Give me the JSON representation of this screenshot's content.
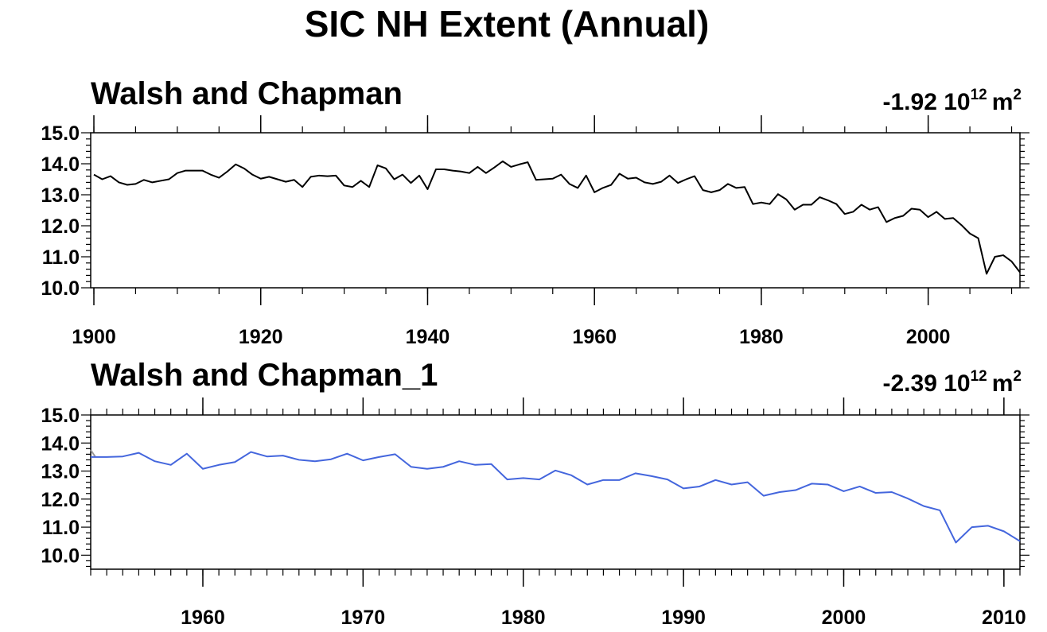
{
  "page_title": "SIC NH Extent (Annual)",
  "chart_data": [
    {
      "type": "line",
      "title": "Walsh and Chapman",
      "annotation": {
        "value": "-1.92 10",
        "exponent": "12",
        "unit": "m",
        "unit_exponent": "2"
      },
      "xlim": [
        1900,
        2011
      ],
      "ylim": [
        10.0,
        15.0
      ],
      "xticks": [
        1900,
        1920,
        1940,
        1960,
        1980,
        2000
      ],
      "xtick_labels": [
        "1900",
        "1920",
        "1940",
        "1960",
        "1980",
        "2000"
      ],
      "yticks": [
        10.0,
        11.0,
        12.0,
        13.0,
        14.0,
        15.0
      ],
      "ytick_labels": [
        "10.0",
        "11.0",
        "12.0",
        "13.0",
        "14.0",
        "15.0"
      ],
      "color": "#000000",
      "series": [
        {
          "x_start": 1900,
          "values": [
            13.65,
            13.5,
            13.6,
            13.4,
            13.32,
            13.35,
            13.48,
            13.4,
            13.45,
            13.5,
            13.7,
            13.78,
            13.78,
            13.78,
            13.65,
            13.55,
            13.75,
            13.98,
            13.85,
            13.65,
            13.52,
            13.58,
            13.5,
            13.42,
            13.48,
            13.25,
            13.58,
            13.62,
            13.6,
            13.62,
            13.3,
            13.25,
            13.45,
            13.25,
            13.95,
            13.85,
            13.5,
            13.65,
            13.38,
            13.62,
            13.18,
            13.82,
            13.82,
            13.78,
            13.75,
            13.7,
            13.9,
            13.7,
            13.88,
            14.08,
            13.9,
            13.98,
            14.05,
            13.48,
            13.5,
            13.52,
            13.65,
            13.35,
            13.22,
            13.62,
            13.08,
            13.22,
            13.32,
            13.68,
            13.52,
            13.55,
            13.4,
            13.35,
            13.42,
            13.62,
            13.38,
            13.5,
            13.6,
            13.15,
            13.08,
            13.15,
            13.35,
            13.22,
            13.25,
            12.7,
            12.75,
            12.7,
            13.02,
            12.85,
            12.52,
            12.68,
            12.68,
            12.92,
            12.82,
            12.7,
            12.38,
            12.45,
            12.68,
            12.52,
            12.6,
            12.12,
            12.25,
            12.32,
            12.55,
            12.52,
            12.28,
            12.45,
            12.22,
            12.25,
            12.02,
            11.75,
            11.6,
            10.45,
            11.0,
            11.05,
            10.85,
            10.5
          ]
        }
      ]
    },
    {
      "type": "line",
      "title": "Walsh and Chapman_1",
      "annotation": {
        "value": "-2.39 10",
        "exponent": "12",
        "unit": "m",
        "unit_exponent": "2"
      },
      "xlim": [
        1953,
        2011
      ],
      "ylim": [
        9.5,
        15.0
      ],
      "xticks": [
        1960,
        1970,
        1980,
        1990,
        2000,
        2010
      ],
      "xtick_labels": [
        "1960",
        "1970",
        "1980",
        "1990",
        "2000",
        "2010"
      ],
      "yticks": [
        10.0,
        11.0,
        12.0,
        13.0,
        14.0,
        15.0
      ],
      "ytick_labels": [
        "10.0",
        "11.0",
        "12.0",
        "13.0",
        "14.0",
        "15.0"
      ],
      "color": "#4466dd",
      "lead_in": {
        "from": [
          1953,
          13.75
        ],
        "to": [
          1953.3,
          13.5
        ],
        "color": "#999999"
      },
      "series": [
        {
          "x_start": 1953,
          "values": [
            13.5,
            13.5,
            13.52,
            13.65,
            13.35,
            13.22,
            13.62,
            13.08,
            13.22,
            13.32,
            13.68,
            13.52,
            13.55,
            13.4,
            13.35,
            13.42,
            13.62,
            13.38,
            13.5,
            13.6,
            13.15,
            13.08,
            13.15,
            13.35,
            13.22,
            13.25,
            12.7,
            12.75,
            12.7,
            13.02,
            12.85,
            12.52,
            12.68,
            12.68,
            12.92,
            12.82,
            12.7,
            12.38,
            12.45,
            12.68,
            12.52,
            12.6,
            12.12,
            12.25,
            12.32,
            12.55,
            12.52,
            12.28,
            12.45,
            12.22,
            12.25,
            12.02,
            11.75,
            11.6,
            10.45,
            11.0,
            11.05,
            10.85,
            10.5
          ]
        }
      ]
    }
  ]
}
